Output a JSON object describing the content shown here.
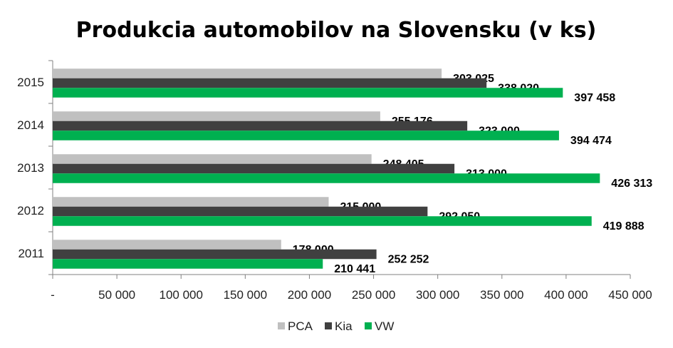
{
  "chart_data": {
    "type": "bar",
    "orientation": "horizontal",
    "title": "Produkcia automobilov na Slovensku (v ks)",
    "categories": [
      "2011",
      "2012",
      "2013",
      "2014",
      "2015"
    ],
    "series": [
      {
        "name": "PCA",
        "color": "#c0c0c0",
        "values": [
          178000,
          215000,
          248405,
          255176,
          303025
        ],
        "labels": [
          "178 000",
          "215 000",
          "248 405",
          "255 176",
          "303 025"
        ]
      },
      {
        "name": "Kia",
        "color": "#404040",
        "values": [
          252252,
          292050,
          313000,
          323000,
          338020
        ],
        "labels": [
          "252 252",
          "292 050",
          "313 000",
          "323 000",
          "338 020"
        ]
      },
      {
        "name": "VW",
        "color": "#00b050",
        "values": [
          210441,
          419888,
          426313,
          394474,
          397458
        ],
        "labels": [
          "210 441",
          "419 888",
          "426 313",
          "394 474",
          "397 458"
        ]
      }
    ],
    "xlim": [
      0,
      450000
    ],
    "x_ticks": [
      0,
      50000,
      100000,
      150000,
      200000,
      250000,
      300000,
      350000,
      400000,
      450000
    ],
    "x_tick_labels": [
      "-",
      "50 000",
      "100 000",
      "150 000",
      "200 000",
      "250 000",
      "300 000",
      "350 000",
      "400 000",
      "450 000"
    ],
    "grid": false,
    "legend_position": "bottom"
  }
}
